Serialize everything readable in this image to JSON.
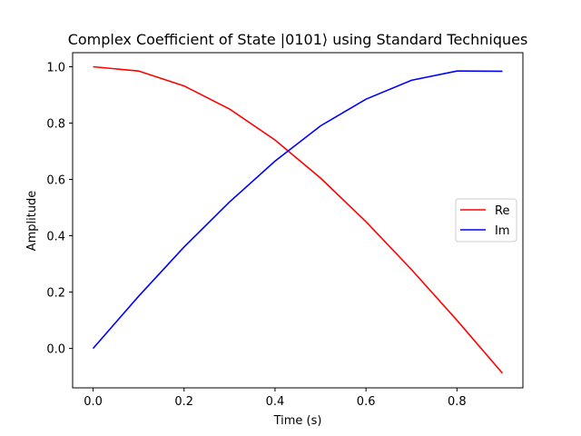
{
  "chart_data": {
    "type": "line",
    "title": "Complex Coefficient of State |0101⟩ using Standard Techniques",
    "xlabel": "Time (s)",
    "ylabel": "Amplitude",
    "xlim": [
      -0.045,
      0.945
    ],
    "ylim": [
      -0.14,
      1.05
    ],
    "xticks": [
      0.0,
      0.2,
      0.4,
      0.6,
      0.8
    ],
    "xtick_labels": [
      "0.0",
      "0.2",
      "0.4",
      "0.6",
      "0.8"
    ],
    "yticks": [
      0.0,
      0.2,
      0.4,
      0.6,
      0.8,
      1.0
    ],
    "ytick_labels": [
      "0.0",
      "0.2",
      "0.4",
      "0.6",
      "0.8",
      "1.0"
    ],
    "grid": false,
    "legend_position": "center-right",
    "x": [
      0.0,
      0.1,
      0.2,
      0.3,
      0.4,
      0.5,
      0.6,
      0.7,
      0.8,
      0.9
    ],
    "series": [
      {
        "name": "Re",
        "color": "#ff0000",
        "values": [
          1.0,
          0.985,
          0.932,
          0.85,
          0.74,
          0.605,
          0.45,
          0.28,
          0.1,
          -0.088
        ]
      },
      {
        "name": "Im",
        "color": "#0000ff",
        "values": [
          0.0,
          0.185,
          0.36,
          0.52,
          0.665,
          0.79,
          0.885,
          0.952,
          0.985,
          0.984
        ]
      }
    ]
  }
}
